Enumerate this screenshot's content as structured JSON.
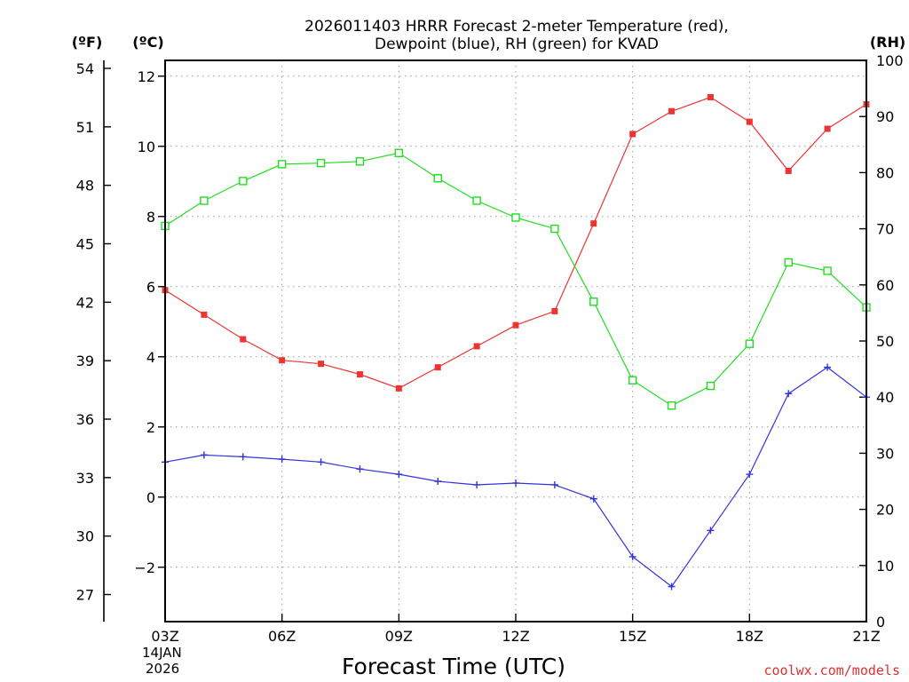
{
  "chart_data": {
    "type": "line",
    "title_line1": "2026011403 HRRR Forecast 2-meter Temperature (red),",
    "title_line2": "Dewpoint (blue), RH (green) for KVAD",
    "units_f": "(ºF)",
    "units_c": "(ºC)",
    "units_rh": "(RH)",
    "xlabel": "Forecast Time (UTC)",
    "date_day": "14JAN",
    "date_year": "2026",
    "credit": "coolwx.com/models",
    "x_hours": [
      3,
      4,
      5,
      6,
      7,
      8,
      9,
      10,
      11,
      12,
      13,
      14,
      15,
      16,
      17,
      18,
      19,
      20,
      21
    ],
    "xlim": [
      3,
      21
    ],
    "x_ticks": [
      {
        "h": 3,
        "label": "03Z"
      },
      {
        "h": 6,
        "label": "06Z"
      },
      {
        "h": 9,
        "label": "09Z"
      },
      {
        "h": 12,
        "label": "12Z"
      },
      {
        "h": 15,
        "label": "15Z"
      },
      {
        "h": 18,
        "label": "18Z"
      },
      {
        "h": 21,
        "label": "21Z"
      }
    ],
    "c_lim": [
      -3.55,
      12.45
    ],
    "c_ticks": [
      {
        "v": -2,
        "label": "−2"
      },
      {
        "v": 0,
        "label": "0"
      },
      {
        "v": 2,
        "label": "2"
      },
      {
        "v": 4,
        "label": "4"
      },
      {
        "v": 6,
        "label": "6"
      },
      {
        "v": 8,
        "label": "8"
      },
      {
        "v": 10,
        "label": "10"
      },
      {
        "v": 12,
        "label": "12"
      }
    ],
    "f_ticks": [
      {
        "v": 27,
        "label": "27"
      },
      {
        "v": 30,
        "label": "30"
      },
      {
        "v": 33,
        "label": "33"
      },
      {
        "v": 36,
        "label": "36"
      },
      {
        "v": 39,
        "label": "39"
      },
      {
        "v": 42,
        "label": "42"
      },
      {
        "v": 45,
        "label": "45"
      },
      {
        "v": 48,
        "label": "48"
      },
      {
        "v": 51,
        "label": "51"
      },
      {
        "v": 54,
        "label": "54"
      }
    ],
    "rh_lim": [
      0,
      100
    ],
    "rh_ticks": [
      {
        "v": 0,
        "label": "0"
      },
      {
        "v": 10,
        "label": "10"
      },
      {
        "v": 20,
        "label": "20"
      },
      {
        "v": 30,
        "label": "30"
      },
      {
        "v": 40,
        "label": "40"
      },
      {
        "v": 50,
        "label": "50"
      },
      {
        "v": 60,
        "label": "60"
      },
      {
        "v": 70,
        "label": "70"
      },
      {
        "v": 80,
        "label": "80"
      },
      {
        "v": 90,
        "label": "90"
      },
      {
        "v": 100,
        "label": "100"
      }
    ],
    "series": [
      {
        "name": "Temperature",
        "axis": "c",
        "color": "#ee3333",
        "marker": "filled-square",
        "values": [
          5.9,
          5.2,
          4.5,
          3.9,
          3.8,
          3.5,
          3.1,
          3.7,
          4.3,
          4.9,
          5.3,
          7.8,
          10.35,
          11.0,
          11.4,
          10.7,
          9.3,
          10.5,
          11.2
        ]
      },
      {
        "name": "Dewpoint",
        "axis": "c",
        "color": "#3333dd",
        "marker": "plus",
        "values": [
          1.0,
          1.2,
          1.15,
          1.08,
          1.0,
          0.8,
          0.65,
          0.45,
          0.35,
          0.4,
          0.35,
          -0.05,
          -1.7,
          -2.55,
          -0.95,
          0.65,
          2.95,
          3.7,
          2.85
        ]
      },
      {
        "name": "RH",
        "axis": "rh",
        "color": "#22dd22",
        "marker": "open-square",
        "values": [
          70.5,
          75.0,
          78.5,
          81.5,
          81.7,
          82.0,
          83.5,
          79.0,
          75.0,
          72.0,
          70.0,
          57.0,
          43.0,
          38.5,
          42.0,
          49.5,
          64.0,
          62.5,
          56.0
        ]
      }
    ]
  }
}
